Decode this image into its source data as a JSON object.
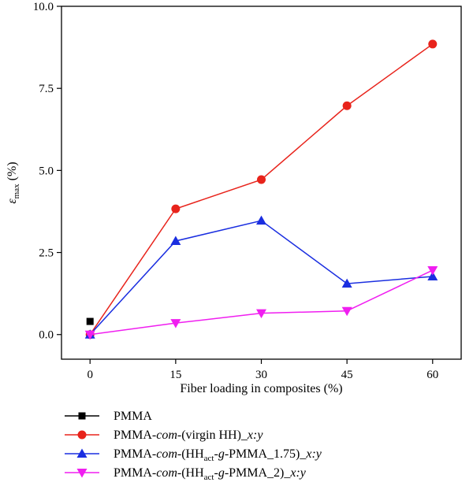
{
  "chart_data": {
    "type": "line",
    "xlabel": "Fiber loading in composites (%)",
    "ylabel": {
      "symbol": "ε",
      "subscript": "max",
      "unit": " (%)"
    },
    "xlim": [
      -5,
      65
    ],
    "ylim": [
      -0.75,
      10.0
    ],
    "x_ticks": [
      "0",
      "15",
      "30",
      "45",
      "60"
    ],
    "y_ticks": [
      "0.0",
      "2.5",
      "5.0",
      "7.5",
      "10.0"
    ],
    "grid": false,
    "legend_position": "below",
    "series": [
      {
        "legend_parts": [
          {
            "t": "PMMA"
          }
        ],
        "color": "#000000",
        "marker": "square",
        "x": [
          0
        ],
        "y": [
          0.4
        ]
      },
      {
        "legend_parts": [
          {
            "t": "PMMA-"
          },
          {
            "t": "com",
            "s": "it"
          },
          {
            "t": "-(virgin HH)_"
          },
          {
            "t": "x:y",
            "s": "it"
          }
        ],
        "color": "#e8231b",
        "marker": "circle",
        "x": [
          0,
          15,
          30,
          45,
          60
        ],
        "y": [
          0.0,
          3.83,
          4.72,
          6.97,
          8.85
        ]
      },
      {
        "legend_parts": [
          {
            "t": "PMMA-"
          },
          {
            "t": "com",
            "s": "it"
          },
          {
            "t": "-(HH"
          },
          {
            "t": "act",
            "s": "sub"
          },
          {
            "t": "-"
          },
          {
            "t": "g",
            "s": "it"
          },
          {
            "t": "-PMMA_1.75)_"
          },
          {
            "t": "x:y",
            "s": "it"
          }
        ],
        "color": "#1a2ee0",
        "marker": "triangle-up",
        "x": [
          0,
          15,
          30,
          45,
          60
        ],
        "y": [
          0.0,
          2.85,
          3.47,
          1.55,
          1.77
        ]
      },
      {
        "legend_parts": [
          {
            "t": "PMMA-"
          },
          {
            "t": "com",
            "s": "it"
          },
          {
            "t": "-(HH"
          },
          {
            "t": "act",
            "s": "sub"
          },
          {
            "t": "-"
          },
          {
            "t": "g",
            "s": "it"
          },
          {
            "t": "-PMMA_2)_"
          },
          {
            "t": "x:y",
            "s": "it"
          }
        ],
        "color": "#f01ef0",
        "marker": "triangle-down",
        "x": [
          0,
          15,
          30,
          45,
          60
        ],
        "y": [
          0.0,
          0.35,
          0.65,
          0.72,
          1.96
        ]
      }
    ]
  }
}
